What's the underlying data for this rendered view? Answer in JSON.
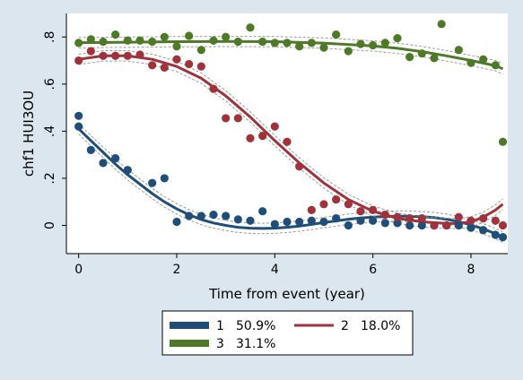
{
  "chart_data": {
    "type": "scatter",
    "title": "",
    "xlabel": "Time from event (year)",
    "ylabel": "chf1 HUI3OU",
    "xlim": [
      -0.25,
      8.75
    ],
    "ylim": [
      -0.12,
      0.9
    ],
    "x_ticks": [
      0,
      2,
      4,
      6,
      8
    ],
    "y_ticks": [
      0,
      0.2,
      0.4,
      0.6,
      0.8
    ],
    "x_tick_labels": [
      "0",
      "2",
      "4",
      "6",
      "8"
    ],
    "y_tick_labels": [
      "0",
      ".2",
      ".4",
      ".6",
      ".8"
    ],
    "grid": false,
    "legend": {
      "position": "bottom",
      "entries": [
        {
          "num": "1",
          "pct": "50.9%"
        },
        {
          "num": "2",
          "pct": "18.0%"
        },
        {
          "num": "3",
          "pct": "31.1%"
        }
      ]
    },
    "series": [
      {
        "name": "1",
        "percent": "50.9%",
        "color": "#1f4e79",
        "points": [
          [
            0,
            0.465
          ],
          [
            0,
            0.42
          ],
          [
            0.25,
            0.32
          ],
          [
            0.5,
            0.265
          ],
          [
            0.75,
            0.285
          ],
          [
            1,
            0.235
          ],
          [
            1.5,
            0.18
          ],
          [
            1.75,
            0.2
          ],
          [
            2,
            0.015
          ],
          [
            2.25,
            0.04
          ],
          [
            2.5,
            0.04
          ],
          [
            2.75,
            0.045
          ],
          [
            3,
            0.04
          ],
          [
            3.25,
            0.025
          ],
          [
            3.5,
            0.02
          ],
          [
            3.75,
            0.06
          ],
          [
            4,
            0.005
          ],
          [
            4.25,
            0.015
          ],
          [
            4.5,
            0.015
          ],
          [
            4.75,
            0.02
          ],
          [
            5,
            0.015
          ],
          [
            5.25,
            0.03
          ],
          [
            5.5,
            0.0
          ],
          [
            5.75,
            0.02
          ],
          [
            6,
            0.02
          ],
          [
            6.25,
            0.01
          ],
          [
            6.5,
            0.01
          ],
          [
            6.75,
            0.0
          ],
          [
            7,
            0.0
          ],
          [
            7.25,
            0.0
          ],
          [
            7.5,
            0.0
          ],
          [
            7.75,
            0.0
          ],
          [
            8,
            -0.01
          ],
          [
            8.25,
            -0.02
          ],
          [
            8.5,
            -0.04
          ],
          [
            8.65,
            -0.05
          ]
        ],
        "fit": [
          [
            0,
            0.41
          ],
          [
            0.25,
            0.36
          ],
          [
            0.5,
            0.31
          ],
          [
            0.75,
            0.26
          ],
          [
            1,
            0.215
          ],
          [
            1.25,
            0.175
          ],
          [
            1.5,
            0.135
          ],
          [
            1.75,
            0.1
          ],
          [
            2,
            0.07
          ],
          [
            2.25,
            0.045
          ],
          [
            2.5,
            0.025
          ],
          [
            2.75,
            0.01
          ],
          [
            3,
            0.0
          ],
          [
            3.25,
            -0.008
          ],
          [
            3.5,
            -0.012
          ],
          [
            3.75,
            -0.013
          ],
          [
            4,
            -0.012
          ],
          [
            4.25,
            -0.008
          ],
          [
            4.5,
            -0.003
          ],
          [
            4.75,
            0.004
          ],
          [
            5,
            0.012
          ],
          [
            5.25,
            0.019
          ],
          [
            5.5,
            0.026
          ],
          [
            5.75,
            0.031
          ],
          [
            6,
            0.035
          ],
          [
            6.25,
            0.038
          ],
          [
            6.5,
            0.039
          ],
          [
            6.75,
            0.039
          ],
          [
            7,
            0.037
          ],
          [
            7.25,
            0.033
          ],
          [
            7.5,
            0.026
          ],
          [
            7.75,
            0.016
          ],
          [
            8,
            0.002
          ],
          [
            8.25,
            -0.015
          ],
          [
            8.5,
            -0.035
          ],
          [
            8.65,
            -0.05
          ]
        ]
      },
      {
        "name": "2",
        "percent": "18.0%",
        "color": "#a0323c",
        "points": [
          [
            0,
            0.7
          ],
          [
            0.25,
            0.74
          ],
          [
            0.5,
            0.72
          ],
          [
            0.75,
            0.72
          ],
          [
            1,
            0.72
          ],
          [
            1.25,
            0.725
          ],
          [
            1.5,
            0.68
          ],
          [
            1.75,
            0.67
          ],
          [
            2,
            0.705
          ],
          [
            2.25,
            0.685
          ],
          [
            2.5,
            0.675
          ],
          [
            2.75,
            0.58
          ],
          [
            3,
            0.455
          ],
          [
            3.25,
            0.455
          ],
          [
            3.5,
            0.37
          ],
          [
            3.75,
            0.38
          ],
          [
            4,
            0.42
          ],
          [
            4.25,
            0.355
          ],
          [
            4.5,
            0.25
          ],
          [
            4.75,
            0.065
          ],
          [
            5,
            0.09
          ],
          [
            5.25,
            0.11
          ],
          [
            5.5,
            0.09
          ],
          [
            5.75,
            0.06
          ],
          [
            6,
            0.065
          ],
          [
            6.25,
            0.045
          ],
          [
            6.5,
            0.035
          ],
          [
            6.75,
            0.03
          ],
          [
            7,
            0.03
          ],
          [
            7.25,
            0.0
          ],
          [
            7.5,
            0.0
          ],
          [
            7.75,
            0.035
          ],
          [
            8,
            0.02
          ],
          [
            8.25,
            0.03
          ],
          [
            8.5,
            0.02
          ],
          [
            8.65,
            0.0
          ]
        ],
        "fit": [
          [
            0,
            0.705
          ],
          [
            0.5,
            0.72
          ],
          [
            1,
            0.72
          ],
          [
            1.5,
            0.705
          ],
          [
            2,
            0.675
          ],
          [
            2.5,
            0.625
          ],
          [
            3,
            0.55
          ],
          [
            3.5,
            0.46
          ],
          [
            4,
            0.36
          ],
          [
            4.5,
            0.265
          ],
          [
            5,
            0.18
          ],
          [
            5.5,
            0.11
          ],
          [
            6,
            0.06
          ],
          [
            6.5,
            0.03
          ],
          [
            7,
            0.015
          ],
          [
            7.5,
            0.008
          ],
          [
            7.75,
            0.008
          ],
          [
            8,
            0.015
          ],
          [
            8.25,
            0.035
          ],
          [
            8.5,
            0.065
          ],
          [
            8.65,
            0.09
          ]
        ]
      },
      {
        "name": "3",
        "percent": "31.1%",
        "color": "#4e7a27",
        "points": [
          [
            0,
            0.775
          ],
          [
            0.25,
            0.79
          ],
          [
            0.5,
            0.78
          ],
          [
            0.75,
            0.81
          ],
          [
            1,
            0.785
          ],
          [
            1.25,
            0.785
          ],
          [
            1.5,
            0.78
          ],
          [
            1.75,
            0.8
          ],
          [
            2,
            0.76
          ],
          [
            2.25,
            0.805
          ],
          [
            2.5,
            0.745
          ],
          [
            2.75,
            0.785
          ],
          [
            3,
            0.8
          ],
          [
            3.25,
            0.78
          ],
          [
            3.5,
            0.84
          ],
          [
            3.75,
            0.78
          ],
          [
            4,
            0.775
          ],
          [
            4.25,
            0.775
          ],
          [
            4.5,
            0.76
          ],
          [
            4.75,
            0.775
          ],
          [
            5,
            0.755
          ],
          [
            5.25,
            0.81
          ],
          [
            5.5,
            0.74
          ],
          [
            5.75,
            0.77
          ],
          [
            6,
            0.765
          ],
          [
            6.25,
            0.775
          ],
          [
            6.5,
            0.795
          ],
          [
            6.75,
            0.715
          ],
          [
            7,
            0.73
          ],
          [
            7.25,
            0.71
          ],
          [
            7.4,
            0.855
          ],
          [
            7.75,
            0.745
          ],
          [
            8,
            0.69
          ],
          [
            8.25,
            0.705
          ],
          [
            8.5,
            0.68
          ],
          [
            8.65,
            0.355
          ]
        ],
        "fit": [
          [
            0,
            0.776
          ],
          [
            1,
            0.778
          ],
          [
            2,
            0.78
          ],
          [
            3,
            0.781
          ],
          [
            4,
            0.78
          ],
          [
            5,
            0.774
          ],
          [
            6,
            0.762
          ],
          [
            6.5,
            0.752
          ],
          [
            7,
            0.738
          ],
          [
            7.5,
            0.72
          ],
          [
            8,
            0.7
          ],
          [
            8.5,
            0.678
          ],
          [
            8.65,
            0.665
          ]
        ]
      }
    ]
  }
}
